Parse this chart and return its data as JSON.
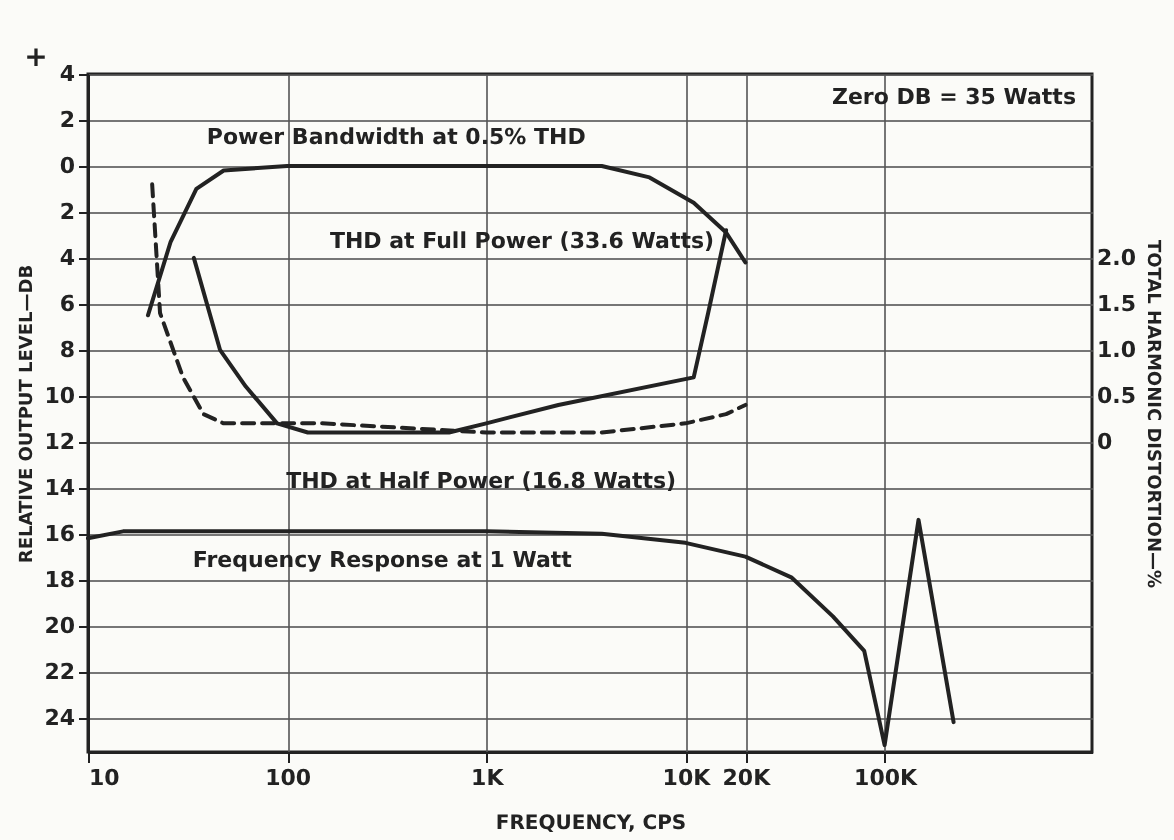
{
  "chart_data": {
    "type": "line",
    "xlabel": "FREQUENCY, CPS",
    "ylabel": "RELATIVE OUTPUT LEVEL—DB",
    "y2label": "TOTAL HARMONIC DISTORTION—%",
    "annotations": [
      "Zero DB = 35 Watts",
      "+"
    ],
    "log": "x",
    "grid": true,
    "line_style": "solid",
    "xlim": [
      10,
      1100000
    ],
    "xticks": [
      10,
      100,
      {
        "value": 1000,
        "label": "1K"
      },
      {
        "value": 10000,
        "label": "10K"
      },
      {
        "value": 20000,
        "label": "20K"
      },
      {
        "value": 100000,
        "label": "100K"
      }
    ],
    "ylim": [
      -25.5,
      4
    ],
    "yticks": [
      4,
      2,
      0,
      {
        "value": -2,
        "label": "2"
      },
      {
        "value": -4,
        "label": "4"
      },
      {
        "value": -6,
        "label": "6"
      },
      {
        "value": -8,
        "label": "8"
      },
      {
        "value": -10,
        "label": "10"
      },
      {
        "value": -12,
        "label": "12"
      },
      {
        "value": -14,
        "label": "14"
      },
      {
        "value": -16,
        "label": "16"
      },
      {
        "value": -18,
        "label": "18"
      },
      {
        "value": -20,
        "label": "20"
      },
      {
        "value": -22,
        "label": "22"
      },
      {
        "value": -24,
        "label": "24"
      }
    ],
    "y2lim": [
      -3.375,
      4
    ],
    "y2ticks": [
      0,
      0.5,
      {
        "value": 1,
        "label": "1.0"
      },
      1.5,
      {
        "value": 2,
        "label": "2.0"
      }
    ],
    "series": [
      {
        "name": "Power Bandwidth at 0.5% THD",
        "color": "#222222",
        "x": [
          20,
          26,
          35,
          48,
          100,
          1000,
          3800,
          6600,
          11000,
          16000,
          20000
        ],
        "values": [
          -6.5,
          -3.3,
          -1.0,
          -0.2,
          0,
          0,
          0,
          -0.5,
          -1.6,
          -2.9,
          -4.2
        ]
      },
      {
        "name": "THD at Full Power (33.6 Watts)",
        "color": "#222222",
        "axis": "y2",
        "x": [
          34,
          46,
          62,
          89,
          127,
          650,
          1000,
          2300,
          11000,
          13000,
          16000
        ],
        "values": [
          2.0,
          1.0,
          0.6,
          0.2,
          0.1,
          0.1,
          0.2,
          0.4,
          0.7,
          1.4,
          2.3
        ]
      },
      {
        "name": "THD at Half Power (16.8 Watts)",
        "color": "#222222",
        "axis": "y2",
        "line_style": "dashed",
        "x": [
          21,
          23,
          30,
          38,
          48,
          150,
          1000,
          3800,
          10000,
          16000,
          20000
        ],
        "values": [
          2.8,
          1.4,
          0.7,
          0.3,
          0.2,
          0.2,
          0.1,
          0.1,
          0.2,
          0.3,
          0.4
        ]
      },
      {
        "name": "Frequency Response at 1 Watt",
        "color": "#222222",
        "x": [
          10,
          15,
          100,
          1000,
          3800,
          10000,
          20000,
          34000,
          55000,
          79000,
          100000,
          148000,
          222000
        ],
        "values": [
          -16.2,
          -15.9,
          -15.9,
          -15.9,
          -16.0,
          -16.4,
          -17.0,
          -17.9,
          -19.6,
          -21.1,
          -25.2,
          -15.4,
          -24.2
        ]
      }
    ]
  }
}
